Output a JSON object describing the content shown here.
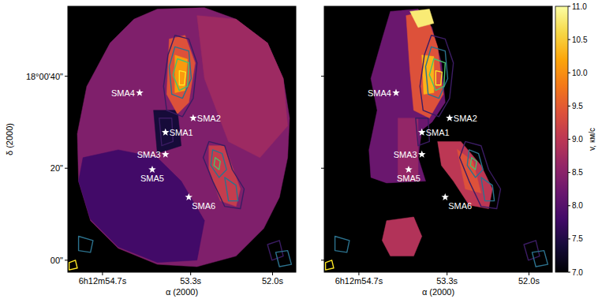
{
  "chart_data": {
    "type": "heatmap",
    "xlabel": "α (2000)",
    "ylabel": "δ (2000)",
    "xlim": [
      55.25,
      51.63
    ],
    "ylim": [
      -2.6,
      55.2
    ],
    "xticks": [
      {
        "value": 54.7,
        "label": "6h12m54.7s"
      },
      {
        "value": 53.3,
        "label": "53.3s"
      },
      {
        "value": 52.0,
        "label": "52.0s"
      }
    ],
    "yticks": [
      {
        "value": 0,
        "label": "00\""
      },
      {
        "value": 20,
        "label": "20\""
      },
      {
        "value": 40,
        "label": "18°00'40\""
      }
    ],
    "colorbar_label": "v, км/с",
    "colorbar_range": [
      7.0,
      11.0
    ],
    "colorbar_ticks": [
      {
        "value": 7.0,
        "label": "7.0"
      },
      {
        "value": 7.5,
        "label": "7.5"
      },
      {
        "value": 8.0,
        "label": "8.0"
      },
      {
        "value": 8.5,
        "label": "8.5"
      },
      {
        "value": 9.0,
        "label": "9.0"
      },
      {
        "value": 9.5,
        "label": "9.5"
      },
      {
        "value": 10.0,
        "label": "10.0"
      },
      {
        "value": 10.5,
        "label": "10.5"
      },
      {
        "value": 11.0,
        "label": "11.0"
      }
    ],
    "panels": [
      {
        "regions": [
          {
            "value": 8.4,
            "points": [
              [
                53.83,
                54.6
              ],
              [
                53.08,
                54.9
              ],
              [
                52.58,
                52.4
              ],
              [
                52.08,
                47.2
              ],
              [
                51.83,
                39.5
              ],
              [
                51.73,
                30.9
              ],
              [
                51.76,
                22.3
              ],
              [
                51.89,
                13.7
              ],
              [
                52.14,
                6.9
              ],
              [
                52.58,
                0.9
              ],
              [
                53.2,
                -1.4
              ],
              [
                53.83,
                -0.9
              ],
              [
                54.45,
                2.6
              ],
              [
                54.89,
                8.6
              ],
              [
                55.08,
                17.2
              ],
              [
                55.1,
                27.5
              ],
              [
                54.95,
                37.8
              ],
              [
                54.58,
                47.2
              ],
              [
                54.2,
                52.4
              ]
            ]
          },
          {
            "value": 8.7,
            "points": [
              [
                53.2,
                53.2
              ],
              [
                52.58,
                52.4
              ],
              [
                52.08,
                47.2
              ],
              [
                51.83,
                39.5
              ],
              [
                51.76,
                29.2
              ],
              [
                52.2,
                22.3
              ],
              [
                52.7,
                25.8
              ],
              [
                53.08,
                39.5
              ]
            ]
          },
          {
            "value": 7.8,
            "points": [
              [
                55.01,
                22.3
              ],
              [
                54.45,
                24.0
              ],
              [
                53.83,
                22.3
              ],
              [
                53.45,
                17.2
              ],
              [
                53.08,
                8.6
              ],
              [
                53.2,
                0.0
              ],
              [
                53.83,
                -0.5
              ],
              [
                54.45,
                2.9
              ],
              [
                54.89,
                8.9
              ],
              [
                55.08,
                17.2
              ]
            ]
          },
          {
            "value": 7.4,
            "points": [
              [
                53.89,
                32.6
              ],
              [
                53.51,
                32.6
              ],
              [
                53.45,
                24.9
              ],
              [
                53.83,
                23.2
              ]
            ]
          },
          {
            "value": 9.4,
            "points": [
              [
                53.64,
                48.1
              ],
              [
                53.39,
                48.9
              ],
              [
                53.23,
                42.9
              ],
              [
                53.33,
                34.3
              ],
              [
                53.51,
                31.8
              ],
              [
                53.68,
                36.1
              ]
            ]
          },
          {
            "value": 10.1,
            "points": [
              [
                53.55,
                44.6
              ],
              [
                53.35,
                43.7
              ],
              [
                53.39,
                36.9
              ],
              [
                53.55,
                36.4
              ]
            ]
          },
          {
            "value": 9.1,
            "points": [
              [
                53.01,
                24.9
              ],
              [
                52.76,
                24.9
              ],
              [
                52.51,
                15.5
              ],
              [
                52.58,
                11.7
              ],
              [
                52.83,
                12.9
              ],
              [
                53.01,
                19.8
              ]
            ]
          }
        ]
      },
      {
        "regions": [
          {
            "value": 8.2,
            "points": [
              [
                54.2,
                54.1
              ],
              [
                53.76,
                54.6
              ],
              [
                53.54,
                50.6
              ],
              [
                53.39,
                42.9
              ],
              [
                53.33,
                34.3
              ],
              [
                53.54,
                30.0
              ],
              [
                53.7,
                28.3
              ],
              [
                53.76,
                22.3
              ],
              [
                53.64,
                17.2
              ],
              [
                54.26,
                16.8
              ],
              [
                54.51,
                18.0
              ],
              [
                54.54,
                24.0
              ],
              [
                54.41,
                32.6
              ],
              [
                54.51,
                39.5
              ],
              [
                54.33,
                48.1
              ]
            ]
          },
          {
            "value": 8.6,
            "points": [
              [
                54.08,
                30.9
              ],
              [
                53.76,
                30.9
              ],
              [
                53.76,
                17.2
              ],
              [
                54.08,
                17.2
              ]
            ]
          },
          {
            "value": 9.4,
            "points": [
              [
                53.95,
                53.2
              ],
              [
                53.64,
                54.1
              ],
              [
                53.45,
                46.4
              ],
              [
                53.36,
                36.1
              ],
              [
                53.58,
                30.9
              ],
              [
                53.83,
                32.6
              ],
              [
                53.89,
                41.2
              ]
            ]
          },
          {
            "value": 10.8,
            "points": [
              [
                53.89,
                54.1
              ],
              [
                53.58,
                54.6
              ],
              [
                53.51,
                51.5
              ],
              [
                53.76,
                50.6
              ]
            ]
          },
          {
            "value": 10.3,
            "points": [
              [
                53.7,
                44.6
              ],
              [
                53.51,
                44.3
              ],
              [
                53.51,
                36.4
              ],
              [
                53.67,
                36.1
              ]
            ]
          },
          {
            "value": 9.0,
            "points": [
              [
                53.45,
                25.8
              ],
              [
                53.08,
                25.8
              ],
              [
                52.76,
                20.6
              ],
              [
                52.58,
                15.5
              ],
              [
                52.64,
                11.2
              ],
              [
                52.95,
                12.0
              ],
              [
                53.2,
                17.2
              ],
              [
                53.39,
                20.6
              ]
            ]
          },
          {
            "value": 9.4,
            "points": [
              [
                53.14,
                24.1
              ],
              [
                52.89,
                21.5
              ],
              [
                52.76,
                14.6
              ],
              [
                53.01,
                15.5
              ]
            ]
          },
          {
            "value": 8.9,
            "points": [
              [
                54.26,
                8.6
              ],
              [
                53.83,
                9.4
              ],
              [
                53.7,
                5.2
              ],
              [
                53.83,
                0.9
              ],
              [
                54.2,
                0.9
              ],
              [
                54.33,
                4.3
              ]
            ]
          }
        ]
      }
    ],
    "contours": [
      {
        "color": "#3b1c63",
        "points": [
          [
            53.55,
            48.9
          ],
          [
            53.33,
            48.1
          ],
          [
            53.2,
            42.9
          ],
          [
            53.26,
            35.2
          ],
          [
            53.43,
            31.2
          ],
          [
            53.68,
            32.6
          ],
          [
            53.73,
            37.8
          ],
          [
            53.66,
            44.6
          ]
        ]
      },
      {
        "color": "#2c728e",
        "points": [
          [
            53.55,
            46.4
          ],
          [
            53.33,
            45.5
          ],
          [
            53.29,
            39.5
          ],
          [
            53.43,
            35.2
          ],
          [
            53.6,
            36.1
          ],
          [
            53.64,
            42.1
          ]
        ]
      },
      {
        "color": "#4ac16d",
        "points": [
          [
            53.51,
            43.8
          ],
          [
            53.33,
            42.9
          ],
          [
            53.35,
            37.8
          ],
          [
            53.48,
            36.9
          ],
          [
            53.58,
            40.3
          ]
        ]
      },
      {
        "color": "#fde725",
        "points": [
          [
            53.48,
            41.2
          ],
          [
            53.38,
            40.9
          ],
          [
            53.4,
            38.1
          ],
          [
            53.48,
            38.1
          ]
        ]
      },
      {
        "color": "#3b1c63",
        "points": [
          [
            53.8,
            30.9
          ],
          [
            53.6,
            30.9
          ],
          [
            53.58,
            25.8
          ],
          [
            53.76,
            24.9
          ]
        ]
      },
      {
        "color": "#3b1c63",
        "points": [
          [
            53.01,
            25.8
          ],
          [
            52.76,
            24.9
          ],
          [
            52.64,
            19.7
          ],
          [
            52.45,
            15.5
          ],
          [
            52.51,
            11.2
          ],
          [
            52.76,
            11.7
          ],
          [
            52.95,
            17.2
          ],
          [
            53.1,
            22.3
          ]
        ]
      },
      {
        "color": "#2c728e",
        "points": [
          [
            52.95,
            24.0
          ],
          [
            52.8,
            23.2
          ],
          [
            52.73,
            19.7
          ],
          [
            52.85,
            18.0
          ],
          [
            52.98,
            20.6
          ]
        ]
      },
      {
        "color": "#2c728e",
        "points": [
          [
            52.76,
            18.0
          ],
          [
            52.58,
            16.3
          ],
          [
            52.55,
            12.9
          ],
          [
            52.7,
            12.9
          ]
        ]
      },
      {
        "color": "#4ac16d",
        "points": [
          [
            52.91,
            22.3
          ],
          [
            52.83,
            21.5
          ],
          [
            52.85,
            19.7
          ],
          [
            52.93,
            20.6
          ]
        ]
      },
      {
        "color": "#fde725",
        "points": [
          [
            55.23,
            -0.5
          ],
          [
            55.13,
            0.0
          ],
          [
            55.1,
            -1.7
          ],
          [
            55.23,
            -2.1
          ]
        ]
      },
      {
        "color": "#2c728e",
        "points": [
          [
            55.08,
            5.2
          ],
          [
            54.85,
            4.3
          ],
          [
            54.89,
            1.7
          ],
          [
            55.08,
            2.1
          ]
        ]
      },
      {
        "color": "#3b1c63",
        "points": [
          [
            52.08,
            3.4
          ],
          [
            51.89,
            4.3
          ],
          [
            51.83,
            0.9
          ],
          [
            52.01,
            0.0
          ]
        ]
      },
      {
        "color": "#2c728e",
        "points": [
          [
            51.95,
            1.7
          ],
          [
            51.76,
            2.1
          ],
          [
            51.7,
            -0.9
          ],
          [
            51.89,
            -1.4
          ]
        ]
      }
    ],
    "sources": [
      {
        "name": "SMA4",
        "ra": 54.11,
        "dec": 36.4
      },
      {
        "name": "SMA2",
        "ra": 53.26,
        "dec": 30.9
      },
      {
        "name": "SMA1",
        "ra": 53.7,
        "dec": 27.8
      },
      {
        "name": "SMA3",
        "ra": 53.7,
        "dec": 23.0
      },
      {
        "name": "SMA5",
        "ra": 53.91,
        "dec": 19.7
      },
      {
        "name": "SMA6",
        "ra": 53.33,
        "dec": 13.7
      }
    ]
  }
}
